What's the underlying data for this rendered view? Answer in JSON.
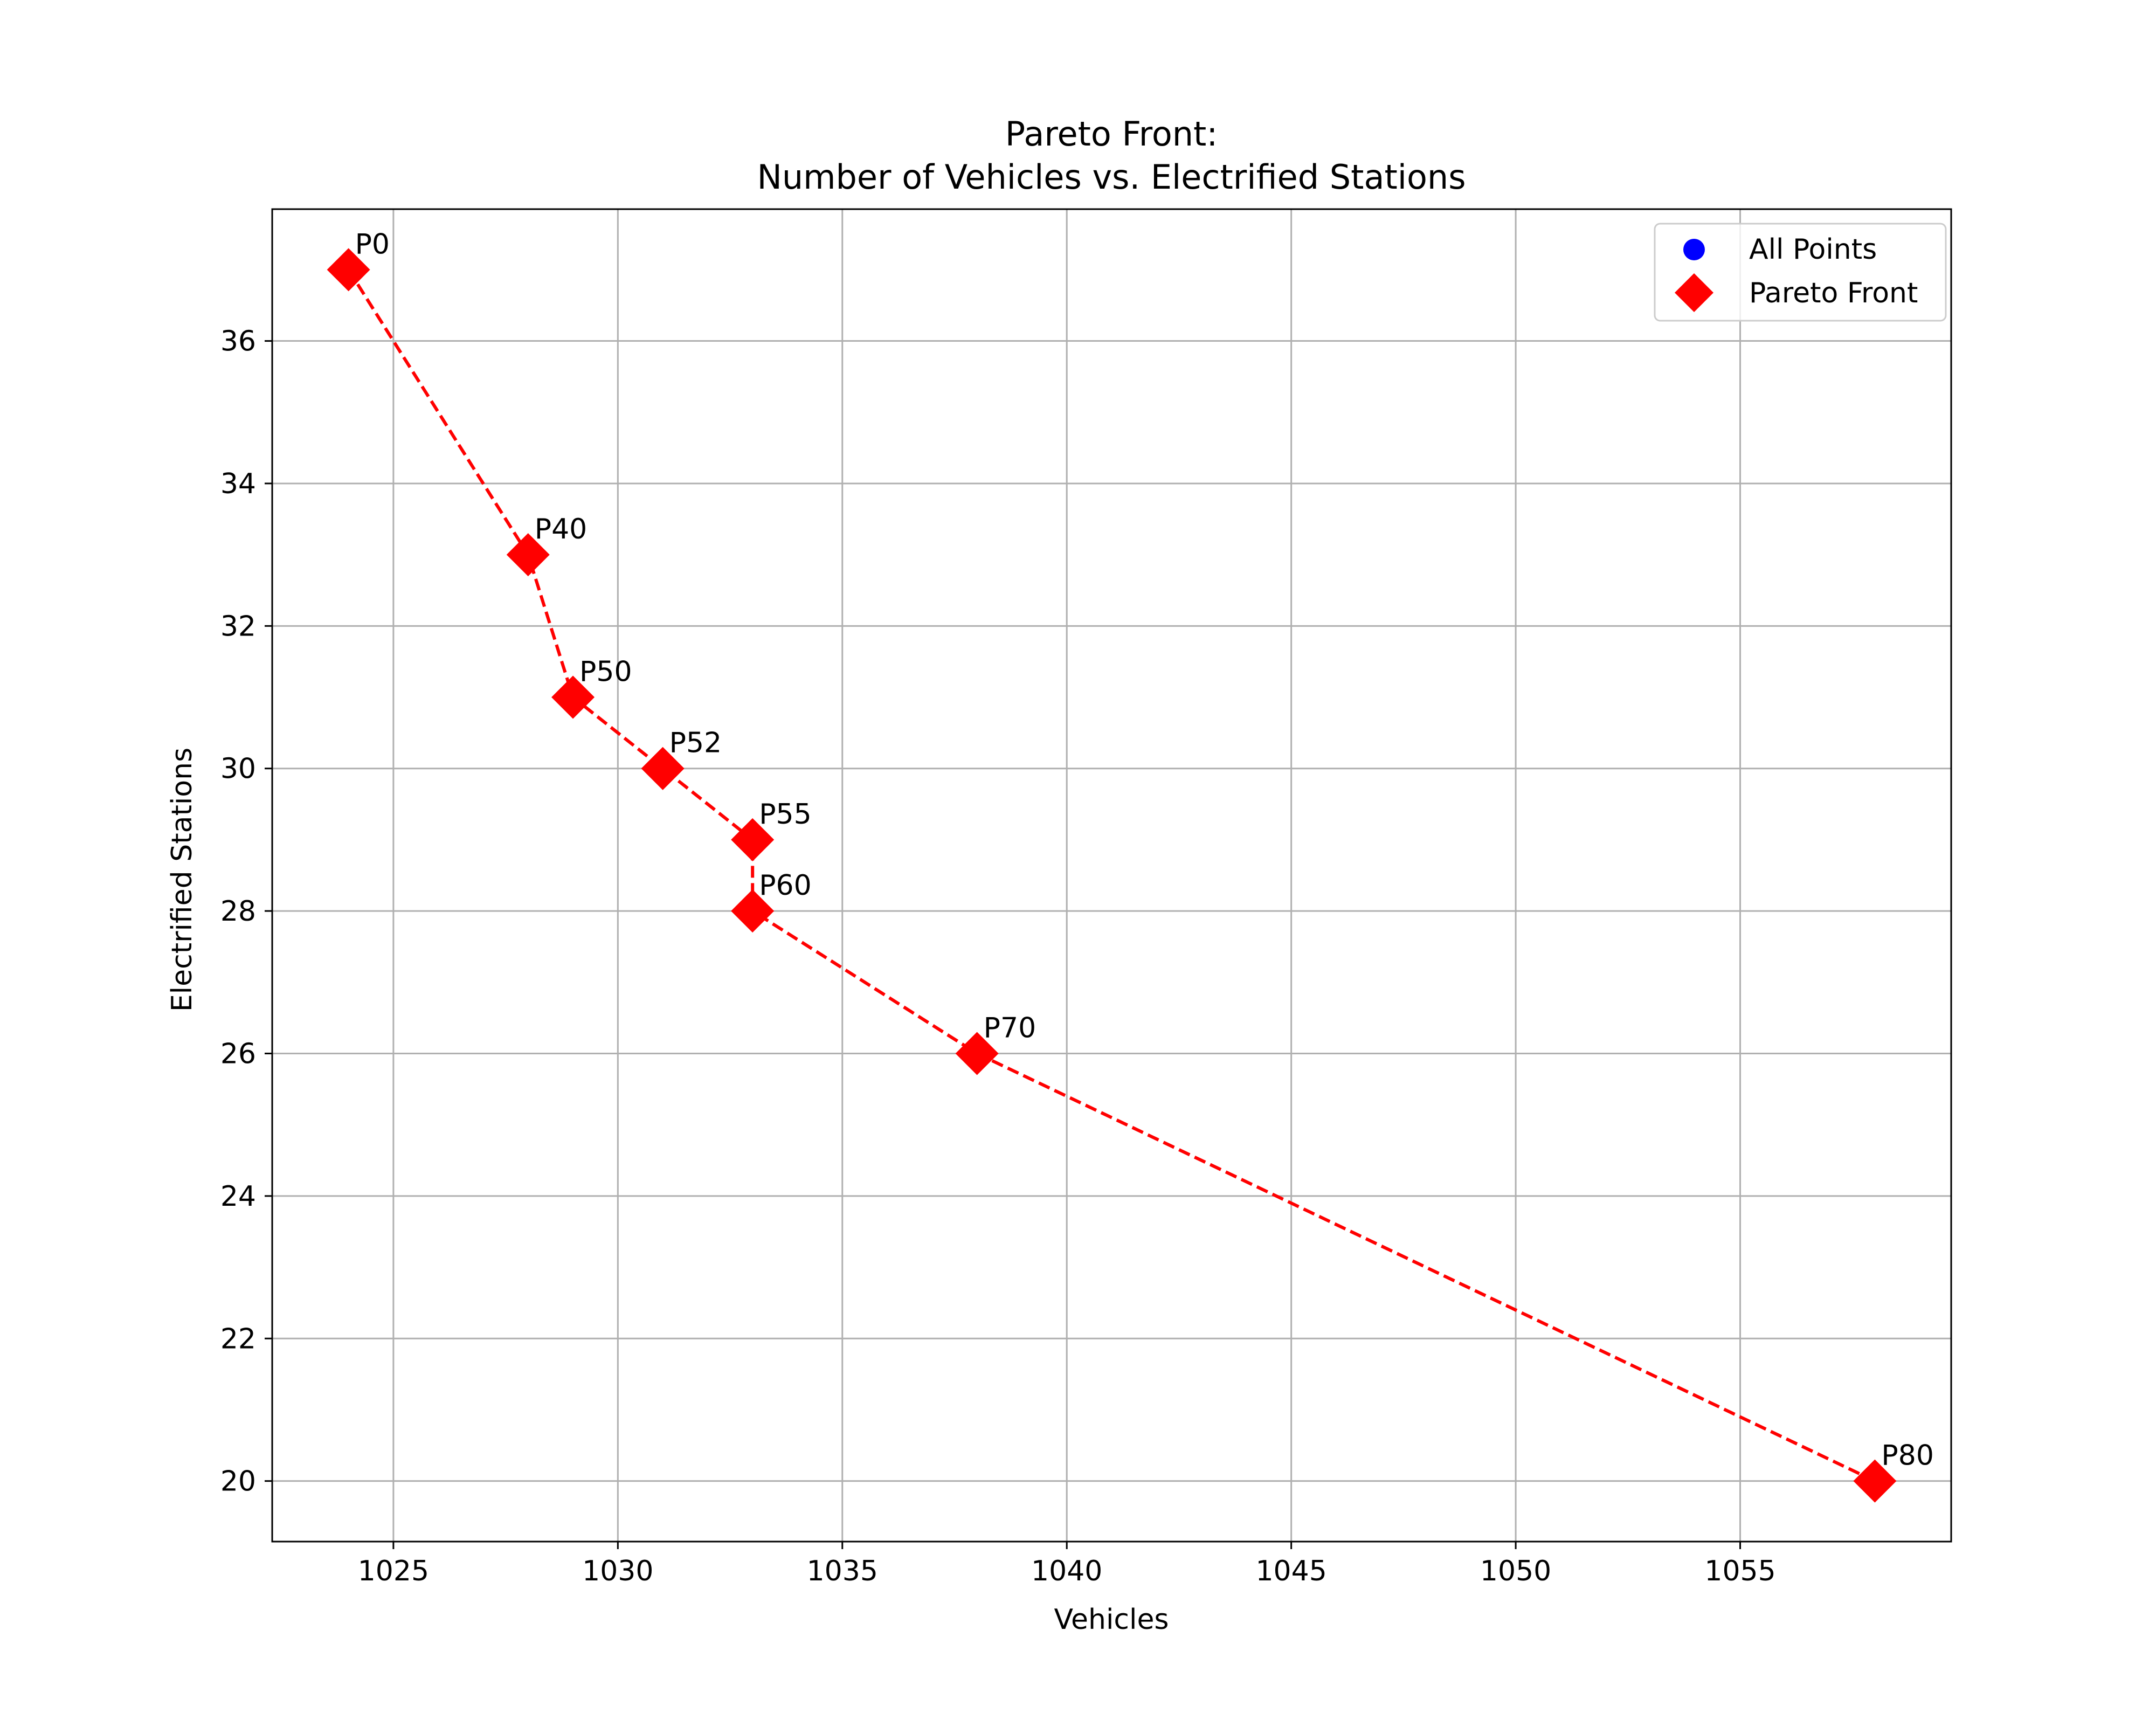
{
  "chart_data": {
    "type": "scatter",
    "title_line1": "Pareto Front:",
    "title_line2": "Number of Vehicles vs. Electrified Stations",
    "xlabel": "Vehicles",
    "ylabel": "Electrified Stations",
    "xlim": [
      1022.3,
      1059.7
    ],
    "ylim": [
      19.15,
      37.85
    ],
    "xticks": [
      1025,
      1030,
      1035,
      1040,
      1045,
      1050,
      1055
    ],
    "yticks": [
      20,
      22,
      24,
      26,
      28,
      30,
      32,
      34,
      36
    ],
    "grid": true,
    "legend_position": "top-right",
    "legend": [
      {
        "label": "All Points",
        "marker": "circle",
        "color": "#0000ff"
      },
      {
        "label": "Pareto Front",
        "marker": "diamond",
        "color": "#ff0000"
      }
    ],
    "series": [
      {
        "name": "Pareto Front",
        "marker": "diamond",
        "color": "#ff0000",
        "line_style": "dashed",
        "points": [
          {
            "label": "P0",
            "x": 1024,
            "y": 37
          },
          {
            "label": "P40",
            "x": 1028,
            "y": 33
          },
          {
            "label": "P50",
            "x": 1029,
            "y": 31
          },
          {
            "label": "P52",
            "x": 1031,
            "y": 30
          },
          {
            "label": "P55",
            "x": 1033,
            "y": 29
          },
          {
            "label": "P60",
            "x": 1033,
            "y": 28
          },
          {
            "label": "P70",
            "x": 1038,
            "y": 26
          },
          {
            "label": "P80",
            "x": 1058,
            "y": 20
          }
        ]
      }
    ]
  }
}
